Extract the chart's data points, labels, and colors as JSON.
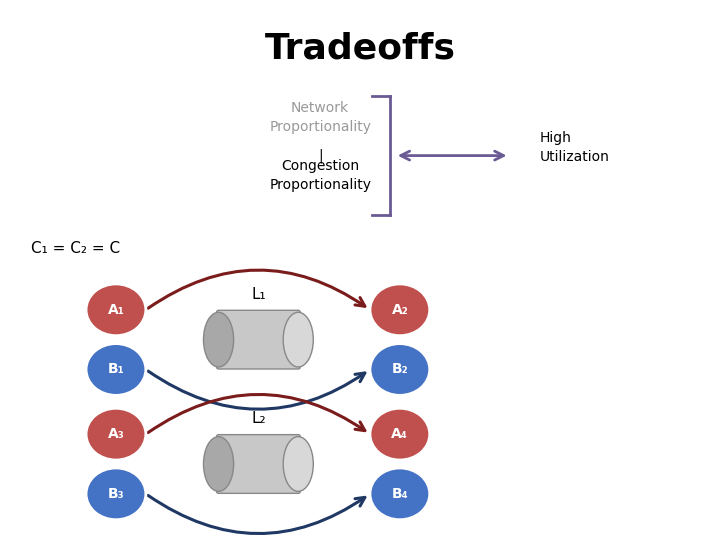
{
  "title": "Tradeoffs",
  "title_fontsize": 26,
  "network_prop_text": "Network\nProportionality",
  "congestion_prop_text": "Congestion\nProportionality",
  "high_util_text": "High\nUtilization",
  "bracket_color": "#6B5B95",
  "arrow_color_double": "#6B5B95",
  "eq_text": "C₁ = C₂ = C",
  "node_A_color": "#C0504D",
  "node_B_color": "#4472C4",
  "node_text_color": "#ffffff",
  "link_color_A": "#7B1C1C",
  "link_color_B": "#1F3864",
  "L1_label": "L₁",
  "L2_label": "L₂",
  "background_color": "#ffffff"
}
